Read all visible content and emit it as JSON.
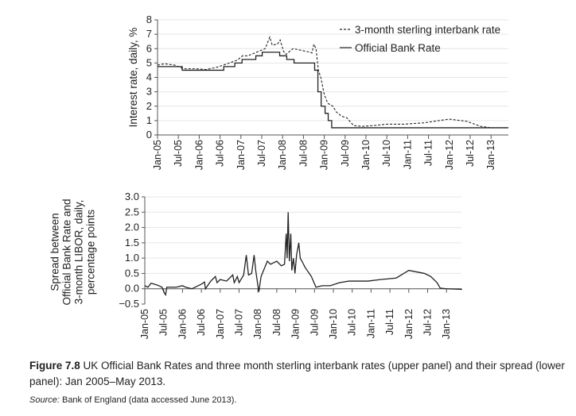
{
  "chart_data": [
    {
      "type": "line",
      "ylabel": "Interest rate, daily, %",
      "ylim": [
        0,
        8
      ],
      "yticks": [
        0,
        1,
        2,
        3,
        4,
        5,
        6,
        7,
        8
      ],
      "xticks": [
        "Jan-05",
        "Jul-05",
        "Jan-06",
        "Jul-06",
        "Jan-07",
        "Jul-07",
        "Jan-08",
        "Jul-08",
        "Jan-09",
        "Jul-09",
        "Jan-10",
        "Jul-10",
        "Jan-11",
        "Jul-11",
        "Jan-12",
        "Jul-12",
        "Jan-13"
      ],
      "xlim": [
        "2005-01-01",
        "2013-05-31"
      ],
      "grid": "horizontal",
      "legend_position": "top-right",
      "series": [
        {
          "name": "3-month sterling interbank rate",
          "style": "dashed",
          "x": [
            "2005-01-01",
            "2005-03-01",
            "2005-06-01",
            "2005-08-15",
            "2005-12-01",
            "2006-03-01",
            "2006-06-01",
            "2006-08-15",
            "2006-12-01",
            "2007-01-15",
            "2007-03-01",
            "2007-06-01",
            "2007-08-01",
            "2007-09-10",
            "2007-10-01",
            "2007-11-15",
            "2007-12-10",
            "2008-01-10",
            "2008-02-01",
            "2008-04-01",
            "2008-06-01",
            "2008-08-01",
            "2008-09-15",
            "2008-10-01",
            "2008-10-20",
            "2008-11-10",
            "2008-12-01",
            "2009-01-01",
            "2009-02-01",
            "2009-03-15",
            "2009-04-15",
            "2009-06-01",
            "2009-07-15",
            "2009-09-15",
            "2009-12-01",
            "2010-03-01",
            "2010-07-01",
            "2010-12-01",
            "2011-06-01",
            "2011-10-01",
            "2012-01-01",
            "2012-06-01",
            "2012-10-01",
            "2013-01-01",
            "2013-05-31"
          ],
          "y": [
            4.85,
            4.95,
            4.85,
            4.6,
            4.6,
            4.55,
            4.7,
            4.9,
            5.2,
            5.5,
            5.5,
            5.8,
            6.0,
            6.8,
            6.25,
            6.3,
            6.6,
            5.8,
            5.6,
            6.0,
            5.9,
            5.8,
            5.7,
            6.3,
            6.0,
            4.5,
            4.0,
            2.8,
            2.2,
            2.0,
            1.6,
            1.3,
            1.2,
            0.65,
            0.6,
            0.65,
            0.75,
            0.75,
            0.85,
            1.0,
            1.1,
            0.95,
            0.6,
            0.5,
            0.5
          ]
        },
        {
          "name": "Official Bank Rate",
          "style": "solid",
          "x": [
            "2005-01-01",
            "2005-08-04",
            "2006-08-03",
            "2006-11-09",
            "2007-01-11",
            "2007-05-10",
            "2007-07-05",
            "2007-12-06",
            "2008-02-07",
            "2008-04-10",
            "2008-10-08",
            "2008-11-06",
            "2008-12-04",
            "2009-01-08",
            "2009-02-05",
            "2009-03-05",
            "2013-05-31"
          ],
          "y": [
            4.75,
            4.5,
            4.75,
            5.0,
            5.25,
            5.5,
            5.75,
            5.5,
            5.25,
            5.0,
            4.5,
            3.0,
            2.0,
            1.5,
            1.0,
            0.5,
            0.5
          ]
        }
      ]
    },
    {
      "type": "line",
      "ylabel": "Spread between Official Bank Rate and 3-month LIBOR, daily, percentage points",
      "ylim": [
        -0.5,
        3.0
      ],
      "yticks": [
        "−0.5",
        "0.0",
        "0.5",
        "1.0",
        "1.5",
        "2.0",
        "2.5",
        "3.0"
      ],
      "xticks": [
        "Jan-05",
        "Jul-05",
        "Jan-06",
        "Jul-06",
        "Jan-07",
        "Jul-07",
        "Jan-08",
        "Jul-08",
        "Jan-09",
        "Jul-09",
        "Jan-10",
        "Jul-10",
        "Jan-11",
        "Jul-11",
        "Jan-12",
        "Jul-12",
        "Jan-13"
      ],
      "xlim": [
        "2005-01-01",
        "2013-05-31"
      ],
      "grid": "horizontal",
      "series": [
        {
          "style": "solid",
          "x": [
            "2005-01-01",
            "2005-02-01",
            "2005-03-01",
            "2005-05-01",
            "2005-06-15",
            "2005-07-10",
            "2005-07-20",
            "2005-08-01",
            "2005-11-01",
            "2006-01-01",
            "2006-02-01",
            "2006-04-01",
            "2006-07-01",
            "2006-08-01",
            "2006-08-10",
            "2006-10-01",
            "2006-11-15",
            "2006-12-01",
            "2007-01-01",
            "2007-03-01",
            "2007-05-01",
            "2007-05-15",
            "2007-06-15",
            "2007-07-01",
            "2007-08-15",
            "2007-09-10",
            "2007-10-01",
            "2007-11-01",
            "2007-11-25",
            "2007-12-10",
            "2008-01-01",
            "2008-01-10",
            "2008-02-01",
            "2008-04-01",
            "2008-05-01",
            "2008-07-01",
            "2008-08-15",
            "2008-09-15",
            "2008-10-01",
            "2008-10-10",
            "2008-10-20",
            "2008-11-01",
            "2008-11-15",
            "2008-11-25",
            "2008-12-10",
            "2008-12-25",
            "2009-01-10",
            "2009-02-01",
            "2009-02-15",
            "2009-03-01",
            "2009-04-01",
            "2009-06-01",
            "2009-07-15",
            "2009-09-15",
            "2009-10-01",
            "2009-12-01",
            "2010-03-01",
            "2010-06-01",
            "2010-12-01",
            "2011-04-01",
            "2011-09-01",
            "2012-01-01",
            "2012-06-01",
            "2012-08-01",
            "2012-10-01",
            "2012-11-01",
            "2013-01-01",
            "2013-05-31"
          ],
          "y": [
            0.1,
            0.05,
            0.18,
            0.12,
            0.05,
            -0.15,
            -0.2,
            0.05,
            0.05,
            0.1,
            0.05,
            0.0,
            0.15,
            0.22,
            0.0,
            0.25,
            0.4,
            0.2,
            0.3,
            0.25,
            0.45,
            0.2,
            0.4,
            0.2,
            0.45,
            1.1,
            0.45,
            0.5,
            1.1,
            0.6,
            0.1,
            -0.1,
            0.4,
            0.9,
            0.8,
            0.9,
            0.75,
            0.8,
            1.8,
            1.0,
            2.5,
            0.9,
            1.8,
            0.6,
            1.0,
            0.5,
            1.1,
            1.5,
            1.0,
            0.9,
            0.7,
            0.4,
            0.05,
            0.1,
            0.1,
            0.1,
            0.2,
            0.25,
            0.25,
            0.3,
            0.35,
            0.6,
            0.5,
            0.4,
            0.2,
            0.02,
            0.0,
            -0.02
          ]
        }
      ]
    }
  ],
  "caption": {
    "label": "Figure 7.8",
    "text": " UK Official Bank Rates and three month sterling interbank rates (upper panel) and their spread (lower panel): Jan 2005–May 2013."
  },
  "source": {
    "label": "Source:",
    "text": " Bank of England (data accessed June 2013)."
  }
}
